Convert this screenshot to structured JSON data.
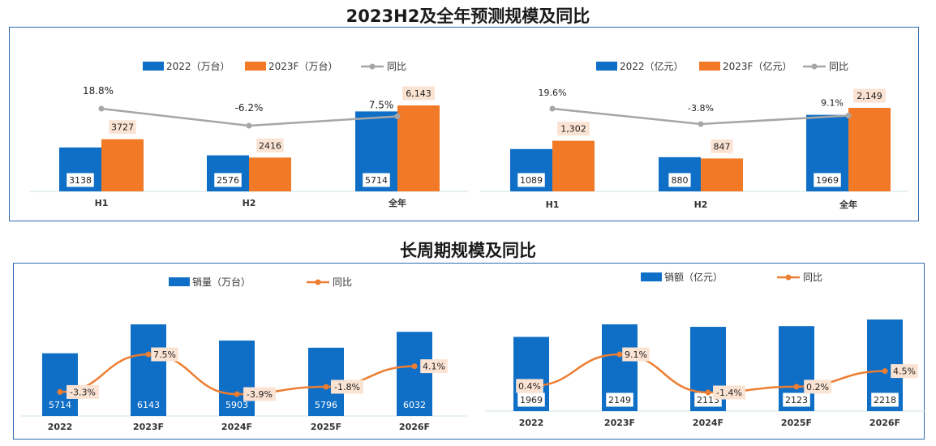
{
  "titles": {
    "top": "2023H2及全年预测规模及同比",
    "bottom": "长周期规模及同比"
  },
  "colors": {
    "blue": "#0f6fc6",
    "orange": "#f27a26",
    "gray_line": "#a6a6a6",
    "orange_line": "#ed7d31",
    "label_box_white": "#ffffff",
    "label_box_peach": "#fbe3d3",
    "frame": "#2e6bb0"
  },
  "chart_data": [
    {
      "type": "bar",
      "categories": [
        "H1",
        "H2",
        "全年"
      ],
      "series": [
        {
          "name": "2022（万台）",
          "values": [
            3138,
            2576,
            5714
          ],
          "labels": [
            "3138",
            "2576",
            "5714"
          ]
        },
        {
          "name": "2023F（万台）",
          "values": [
            3727,
            2416,
            6143
          ],
          "labels": [
            "3727",
            "2416",
            "6,143"
          ]
        }
      ],
      "line": {
        "name": "同比",
        "values": [
          18.8,
          -6.2,
          7.5
        ],
        "labels": [
          "18.8%",
          "-6.2%",
          "7.5%"
        ]
      },
      "legend": "top"
    },
    {
      "type": "bar",
      "categories": [
        "H1",
        "H2",
        "全年"
      ],
      "series": [
        {
          "name": "2022（亿元）",
          "values": [
            1089,
            880,
            1969
          ],
          "labels": [
            "1089",
            "880",
            "1969"
          ]
        },
        {
          "name": "2023F（亿元）",
          "values": [
            1302,
            847,
            2149
          ],
          "labels": [
            "1,302",
            "847",
            "2,149"
          ]
        }
      ],
      "line": {
        "name": "同比",
        "values": [
          19.6,
          -3.8,
          9.1
        ],
        "labels": [
          "19.6%",
          "-3.8%",
          "9.1%"
        ]
      },
      "legend": "top"
    },
    {
      "type": "bar",
      "categories": [
        "2022",
        "2023F",
        "2024F",
        "2025F",
        "2026F"
      ],
      "series": [
        {
          "name": "销量（万台）",
          "values": [
            5714,
            6143,
            5903,
            5796,
            6032
          ],
          "labels": [
            "5714",
            "6143",
            "5903",
            "5796",
            "6032"
          ]
        }
      ],
      "line": {
        "name": "同比",
        "values": [
          -3.3,
          7.5,
          -3.9,
          -1.8,
          4.1
        ],
        "labels": [
          "-3.3%",
          "7.5%",
          "-3.9%",
          "-1.8%",
          "4.1%"
        ]
      },
      "legend": "top"
    },
    {
      "type": "bar",
      "categories": [
        "2022",
        "2023F",
        "2024F",
        "2025F",
        "2026F"
      ],
      "series": [
        {
          "name": "销额（亿元）",
          "values": [
            1969,
            2149,
            2113,
            2123,
            2218
          ],
          "labels": [
            "1969",
            "2149",
            "2113",
            "2123",
            "2218"
          ]
        }
      ],
      "line": {
        "name": "同比",
        "values": [
          0.4,
          9.1,
          -1.4,
          0.2,
          4.5
        ],
        "labels": [
          "0.4%",
          "9.1%",
          "-1.4%",
          "0.2%",
          "4.5%"
        ]
      },
      "legend": "top"
    }
  ]
}
